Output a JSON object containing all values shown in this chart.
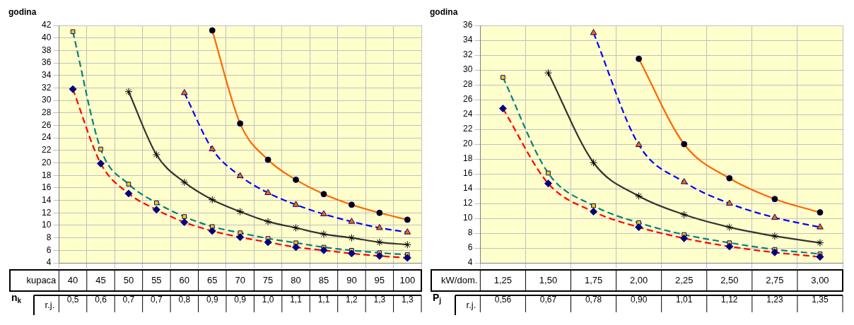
{
  "chart_data": [
    {
      "type": "line",
      "ylabel": "godina",
      "xlabel": "kupaca",
      "categories": [
        "40",
        "45",
        "50",
        "55",
        "60",
        "65",
        "70",
        "75",
        "80",
        "85",
        "90",
        "95",
        "100"
      ],
      "series": [
        {
          "color": "#ff0000",
          "marker": "diamond",
          "line_style": "dashed",
          "values": [
            31.8,
            19.9,
            15.1,
            12.5,
            10.5,
            9.1,
            8.1,
            7.3,
            6.5,
            6.0,
            5.5,
            5.1,
            4.8
          ]
        },
        {
          "color": "#008080",
          "marker": "square",
          "line_style": "dashed",
          "values": [
            41.0,
            22.2,
            16.6,
            13.6,
            11.4,
            9.8,
            8.8,
            7.9,
            7.2,
            6.5,
            6.0,
            5.6,
            5.3
          ]
        },
        {
          "color": "#333333",
          "marker": "cross",
          "line_style": "solid",
          "values": [
            null,
            null,
            31.4,
            21.3,
            16.9,
            14.1,
            12.2,
            10.6,
            9.6,
            8.6,
            8.0,
            7.3,
            6.9
          ]
        },
        {
          "color": "#0000ff",
          "marker": "triangle",
          "line_style": "dashed",
          "values": [
            null,
            null,
            null,
            null,
            31.2,
            22.2,
            17.9,
            15.2,
            13.3,
            11.8,
            10.6,
            9.6,
            8.9
          ]
        },
        {
          "color": "#ff6600",
          "marker": "circle",
          "line_style": "solid",
          "values": [
            null,
            null,
            null,
            null,
            null,
            41.2,
            26.3,
            20.5,
            17.3,
            15.0,
            13.3,
            12.0,
            10.9
          ]
        }
      ],
      "ylim": [
        4,
        42
      ],
      "yticks": [
        4,
        6,
        8,
        10,
        12,
        14,
        16,
        18,
        20,
        22,
        24,
        26,
        28,
        30,
        32,
        34,
        36,
        38,
        40,
        42
      ],
      "grid": true,
      "legend": false,
      "annotations": [
        "n$_{k}$",
        "r.j.",
        "0,5",
        "0,6",
        "0,7",
        "0,7",
        "0,8",
        "0,9",
        "0,9",
        "1,0",
        "1,1",
        "1,1",
        "1,2",
        "1,3",
        "1,3"
      ]
    },
    {
      "type": "line",
      "ylabel": "godina",
      "xlabel": "kW/dom.",
      "categories": [
        "1,25",
        "1,50",
        "1,75",
        "2,00",
        "2,25",
        "2,50",
        "2,75",
        "3,00"
      ],
      "series": [
        {
          "color": "#ff0000",
          "marker": "diamond",
          "line_style": "dashed",
          "values": [
            24.8,
            14.7,
            10.9,
            8.8,
            7.3,
            6.2,
            5.4,
            4.8
          ]
        },
        {
          "color": "#008080",
          "marker": "square",
          "line_style": "dashed",
          "values": [
            29.0,
            16.1,
            11.7,
            9.4,
            7.8,
            6.7,
            5.8,
            5.2
          ]
        },
        {
          "color": "#333333",
          "marker": "cross",
          "line_style": "solid",
          "values": [
            null,
            29.6,
            17.5,
            13.0,
            10.5,
            8.8,
            7.6,
            6.7
          ]
        },
        {
          "color": "#0000ff",
          "marker": "triangle",
          "line_style": "dashed",
          "values": [
            null,
            null,
            35.0,
            19.9,
            14.9,
            12.0,
            10.1,
            8.8
          ]
        },
        {
          "color": "#ff6600",
          "marker": "circle",
          "line_style": "solid",
          "values": [
            null,
            null,
            null,
            31.5,
            20.0,
            15.4,
            12.6,
            10.8
          ]
        }
      ],
      "ylim": [
        4,
        36
      ],
      "yticks": [
        4,
        6,
        8,
        10,
        12,
        14,
        16,
        18,
        20,
        22,
        24,
        26,
        28,
        30,
        32,
        34,
        36
      ],
      "grid": true,
      "legend": false,
      "annotations": [
        "P$_{j}$",
        "r.j.",
        "0,56",
        "0,67",
        "0,78",
        "0,90",
        "1,01",
        "1,12",
        "1,23",
        "1,35"
      ]
    }
  ]
}
